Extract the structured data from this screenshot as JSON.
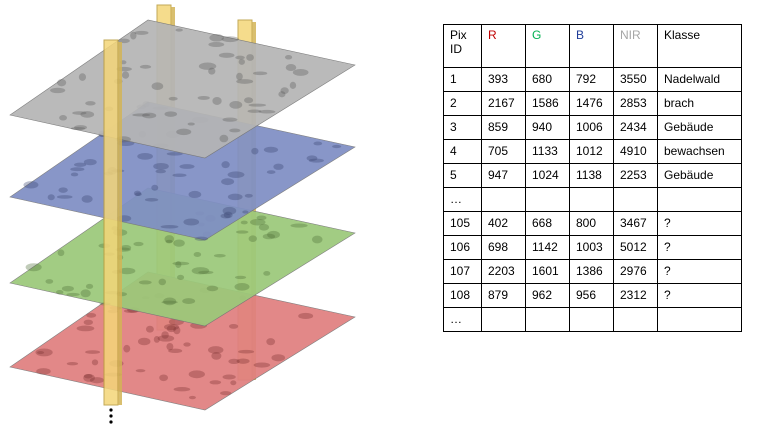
{
  "table": {
    "headers": [
      {
        "label": "Pix ID",
        "color": "#000000",
        "class": "id"
      },
      {
        "label": "R",
        "color": "#c00000",
        "class": ""
      },
      {
        "label": "G",
        "color": "#00b050",
        "class": ""
      },
      {
        "label": "B",
        "color": "#1f3d99",
        "class": ""
      },
      {
        "label": "NIR",
        "color": "#a6a6a6",
        "class": ""
      },
      {
        "label": "Klasse",
        "color": "#000000",
        "class": "kl"
      }
    ],
    "rows": [
      [
        "1",
        "393",
        "680",
        "792",
        "3550",
        "Nadelwald"
      ],
      [
        "2",
        "2167",
        "1586",
        "1476",
        "2853",
        "brach"
      ],
      [
        "3",
        "859",
        "940",
        "1006",
        "2434",
        "Gebäude"
      ],
      [
        "4",
        "705",
        "1133",
        "1012",
        "4910",
        "bewachsen"
      ],
      [
        "5",
        "947",
        "1024",
        "1138",
        "2253",
        "Gebäude"
      ],
      [
        "…",
        "",
        "",
        "",
        "",
        ""
      ],
      [
        "105",
        "402",
        "668",
        "800",
        "3467",
        "?"
      ],
      [
        "106",
        "698",
        "1142",
        "1003",
        "5012",
        "?"
      ],
      [
        "107",
        "2203",
        "1601",
        "1386",
        "2976",
        "?"
      ],
      [
        "108",
        "879",
        "962",
        "956",
        "2312",
        "?"
      ],
      [
        "…",
        "",
        "",
        "",
        "",
        ""
      ]
    ]
  },
  "layers": [
    {
      "name": "NIR",
      "color": "#b5b5b5",
      "shade": "#5a5a5a"
    },
    {
      "name": "B",
      "color": "#7f8fc4",
      "shade": "#3a4670"
    },
    {
      "name": "G",
      "color": "#9cc97a",
      "shade": "#4d6e36"
    },
    {
      "name": "R",
      "color": "#e07f7f",
      "shade": "#7a3030"
    }
  ],
  "pillar_color": "#f4d679"
}
